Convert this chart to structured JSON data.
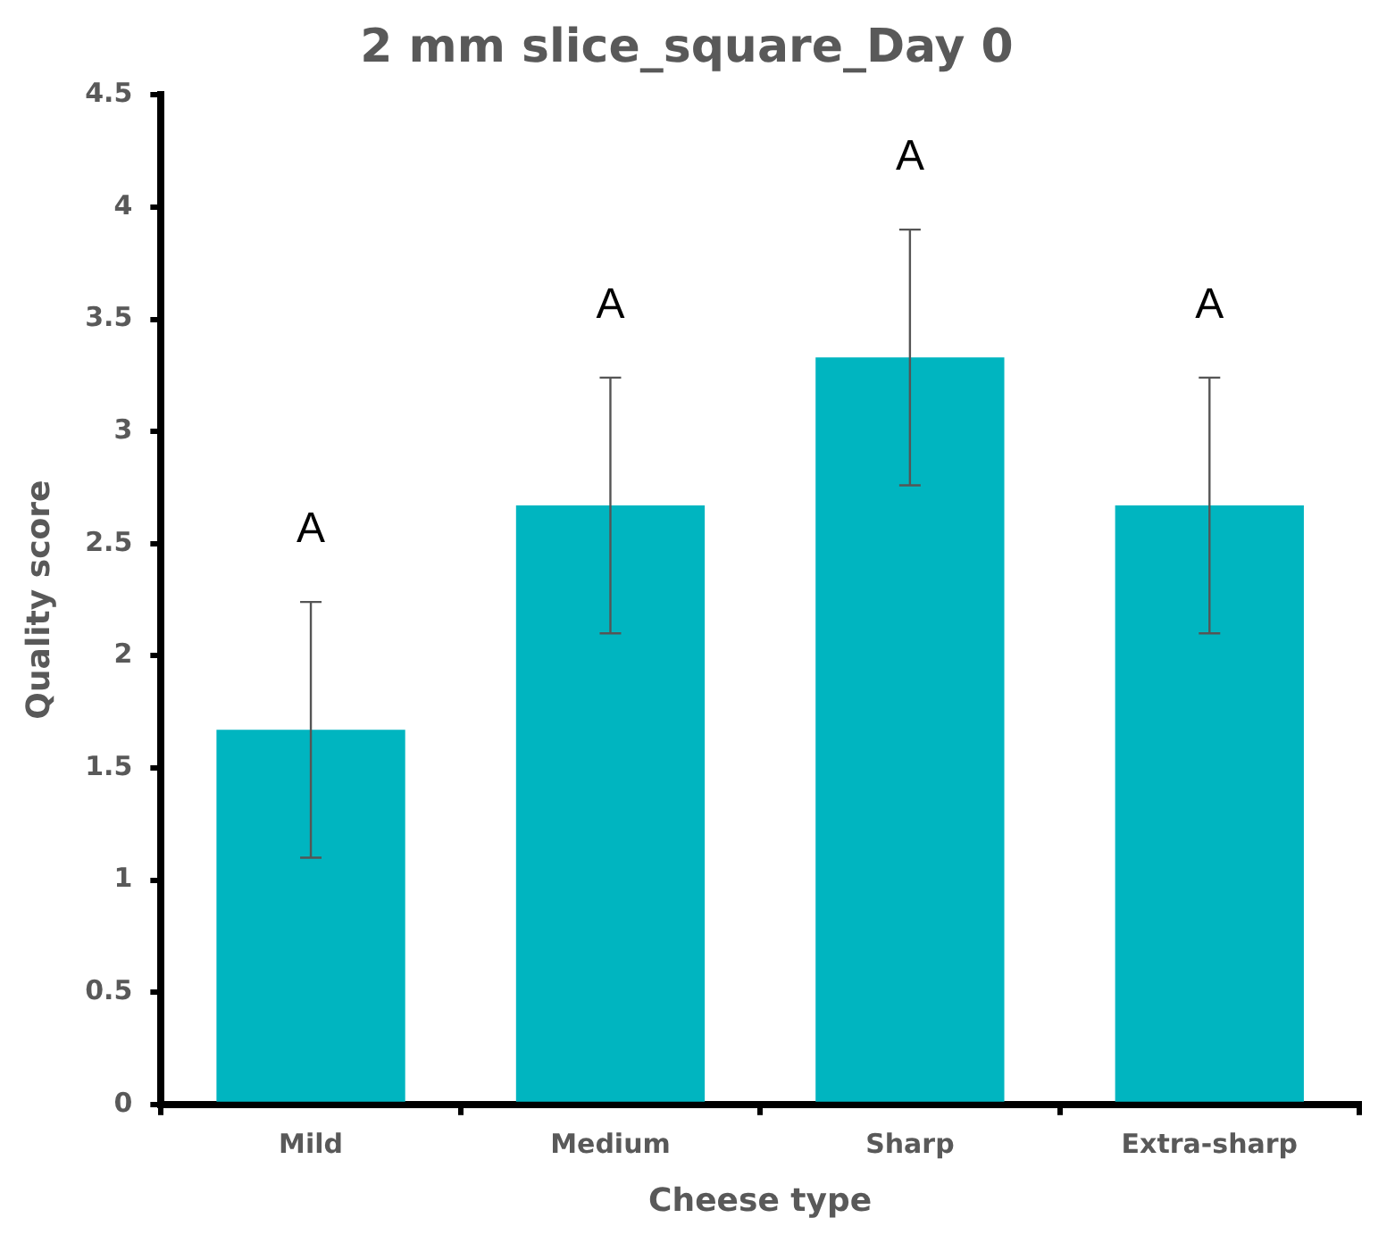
{
  "chart_data": {
    "type": "bar",
    "title": "2 mm slice_square_Day 0",
    "xlabel": "Cheese type",
    "ylabel": "Quality score",
    "categories": [
      "Mild",
      "Medium",
      "Sharp",
      "Extra-sharp"
    ],
    "values": [
      1.67,
      2.67,
      3.33,
      2.67
    ],
    "color": "#00b5c0",
    "errors": [
      0.57,
      0.57,
      0.57,
      0.57
    ],
    "ylim": [
      0,
      4.5
    ],
    "yticks": [
      0,
      0.5,
      1,
      1.5,
      2,
      2.5,
      3,
      3.5,
      4,
      4.5
    ],
    "grid": false,
    "legend": false,
    "annotations": [
      "A",
      "A",
      "A",
      "A"
    ]
  }
}
